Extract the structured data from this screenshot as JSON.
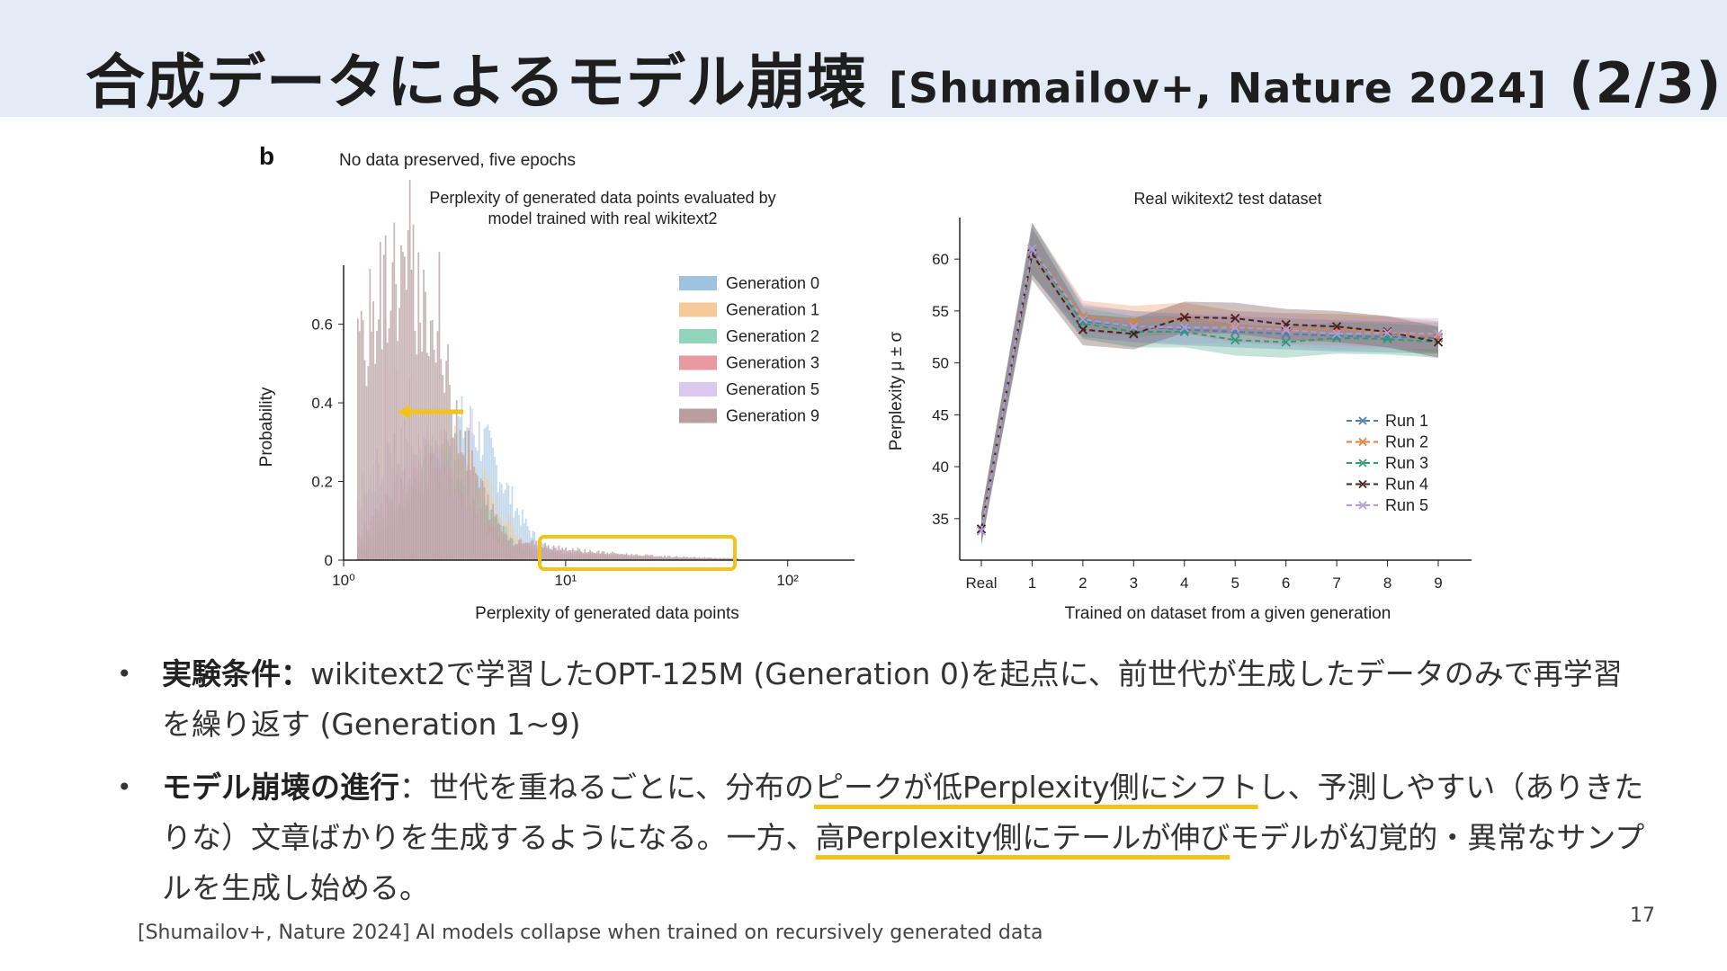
{
  "slide": {
    "title_main": "合成データによるモデル崩壊",
    "title_cite": "[Shumailov+, Nature 2024]",
    "title_part": "(2/3)",
    "page_number": "17",
    "footer": "[Shumailov+, Nature 2024] AI models collapse when trained on recursively generated data"
  },
  "figure": {
    "panel_label": "b",
    "subtitle": "No data preserved, five epochs"
  },
  "bullets": [
    {
      "heading": "実験条件：",
      "text": "wikitext2で学習したOPT-125M (Generation 0)を起点に、前世代が生成したデータのみで再学習を繰り返す (Generation 1~9)"
    },
    {
      "heading": "モデル崩壊の進行",
      "sep": "：世代を重ねるごとに、分布の",
      "hl1": "ピークが低Perplexity側にシフト",
      "mid": "し、予測しやすい（ありきたりな）文章ばかりを生成するようになる。一方、",
      "hl2": "高Perplexity側にテールが伸び",
      "end": "モデルが幻覚的・異常なサンプルを生成し始める。"
    }
  ],
  "chart_data": [
    {
      "type": "histogram",
      "title": "Perplexity of generated data points evaluated by model trained with real wikitext2",
      "title_line1": "Perplexity of generated data points evaluated by",
      "title_line2": "model trained with real wikitext2",
      "xlabel": "Perplexity of generated data points",
      "ylabel": "Probability",
      "xscale": "log",
      "xlim": [
        1,
        200
      ],
      "ylim": [
        0,
        0.75
      ],
      "xticks": [
        "10⁰",
        "10¹",
        "10²"
      ],
      "yticks": [
        "0",
        "0.2",
        "0.4",
        "0.6"
      ],
      "legend_position": "top-right",
      "series": [
        {
          "name": "Generation 0",
          "color": "#9ec3e0",
          "peak_perplexity": 3.5,
          "peak_probability": 0.34
        },
        {
          "name": "Generation 1",
          "color": "#f6c99a",
          "peak_perplexity": 3.0,
          "peak_probability": 0.28
        },
        {
          "name": "Generation 2",
          "color": "#93d4bc",
          "peak_perplexity": 2.7,
          "peak_probability": 0.25
        },
        {
          "name": "Generation 3",
          "color": "#e89aa0",
          "peak_perplexity": 2.4,
          "peak_probability": 0.22
        },
        {
          "name": "Generation 5",
          "color": "#dcc8ee",
          "peak_perplexity": 2.0,
          "peak_probability": 0.3
        },
        {
          "name": "Generation 9",
          "color": "#b89ea0",
          "peak_perplexity": 1.8,
          "peak_probability": 0.72
        }
      ],
      "annotations": [
        "arrow pointing to lower perplexity",
        "highlight box on tail 7–45"
      ]
    },
    {
      "type": "line",
      "title": "Real wikitext2 test dataset",
      "xlabel": "Trained on dataset from a given generation",
      "ylabel": "Perplexity μ ± σ",
      "categories": [
        "Real",
        "1",
        "2",
        "3",
        "4",
        "5",
        "6",
        "7",
        "8",
        "9"
      ],
      "ylim": [
        31,
        64
      ],
      "yticks": [
        35,
        40,
        45,
        50,
        55,
        60
      ],
      "legend_position": "bottom-right",
      "series": [
        {
          "name": "Run 1",
          "color": "#4a7fae",
          "values": [
            34,
            61,
            54.0,
            53.5,
            53.2,
            53.0,
            52.8,
            52.6,
            52.5,
            52.4
          ]
        },
        {
          "name": "Run 2",
          "color": "#e0823e",
          "values": [
            34,
            61,
            54.5,
            54.0,
            54.3,
            53.5,
            53.3,
            53.2,
            53.0,
            52.5
          ]
        },
        {
          "name": "Run 3",
          "color": "#2e9a78",
          "values": [
            34,
            61,
            53.8,
            53.0,
            53.0,
            52.2,
            52.0,
            52.4,
            52.3,
            52.0
          ]
        },
        {
          "name": "Run 4",
          "color": "#4a2020",
          "values": [
            34,
            60.5,
            53.2,
            52.8,
            54.4,
            54.3,
            53.7,
            53.5,
            53.0,
            52.0
          ]
        },
        {
          "name": "Run 5",
          "color": "#b59ad8",
          "values": [
            33.8,
            61,
            54.2,
            53.5,
            53.4,
            53.4,
            53.2,
            52.8,
            52.9,
            52.8
          ]
        }
      ],
      "band_sigma": 1.5
    }
  ]
}
